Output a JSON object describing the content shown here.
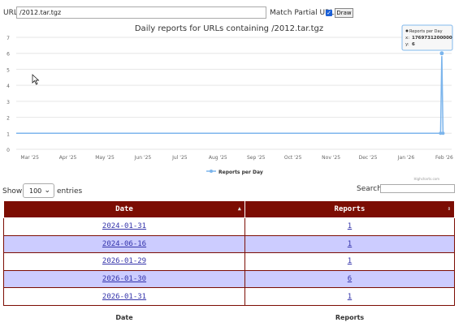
{
  "toolbar": {
    "url_label": "URL",
    "url_value": "/2012.tar.tgz",
    "partial_label": "Match Partial URL",
    "partial_checked": true,
    "draw_label": "Draw"
  },
  "chart_data": {
    "type": "line",
    "title": "Daily reports for URLs containing  /2012.tar.tgz",
    "xlabel": "",
    "ylabel": "",
    "ylim": [
      0,
      7
    ],
    "yticks": [
      "0",
      "1",
      "2",
      "3",
      "4",
      "5",
      "6",
      "7"
    ],
    "xticks": [
      "Mar '25",
      "Apr '25",
      "May '25",
      "Jun '25",
      "Jul '25",
      "Aug '25",
      "Sep '25",
      "Oct '25",
      "Nov '25",
      "Dec '25",
      "Jan '26",
      "Feb '26"
    ],
    "grid": true,
    "legend": "bottom",
    "series": [
      {
        "name": "Reports per Day",
        "color": "#7cb5ec",
        "x": [
          "2025-02-18",
          "2026-01-29",
          "2026-01-30",
          "2026-01-31"
        ],
        "values": [
          1,
          1,
          6,
          1
        ]
      }
    ],
    "tooltip": {
      "title": "Reports per Day",
      "x_text": "x: ",
      "x_value": "1769731200000",
      "y_text": "y: ",
      "y_value": "6"
    },
    "credits": "Highcharts.com"
  },
  "table_controls": {
    "show_label": "Show",
    "entries_value": "100",
    "entries_label": "entries",
    "search_label": "Search:"
  },
  "table": {
    "headers": [
      "Date",
      "Reports"
    ],
    "rows": [
      [
        "2024-01-31",
        "1"
      ],
      [
        "2024-06-16",
        "1"
      ],
      [
        "2026-01-29",
        "1"
      ],
      [
        "2026-01-30",
        "6"
      ],
      [
        "2026-01-31",
        "1"
      ]
    ],
    "footers": [
      "Date",
      "Reports"
    ]
  }
}
